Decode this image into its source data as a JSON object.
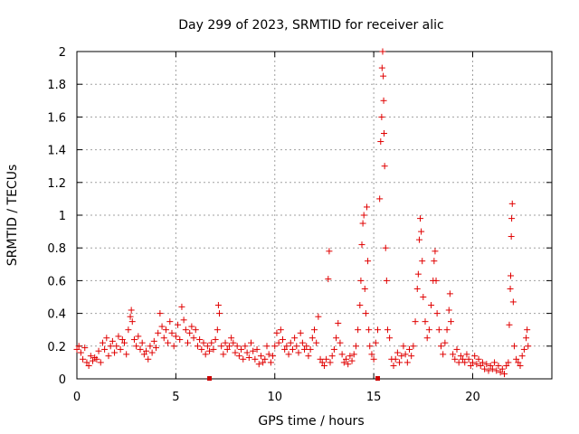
{
  "chart_data": {
    "type": "scatter",
    "title": "Day 299 of 2023, SRMTID for receiver alic",
    "xlabel": "GPS time / hours",
    "ylabel": "SRMTID / TECUs",
    "xlim": [
      0,
      24
    ],
    "ylim": [
      0,
      2
    ],
    "xticks": [
      0,
      5,
      10,
      15,
      20
    ],
    "xtick_labels": [
      "0",
      "5",
      "10",
      "15",
      "20"
    ],
    "yticks": [
      0,
      0.2,
      0.4,
      0.6,
      0.8,
      1,
      1.2,
      1.4,
      1.6,
      1.8,
      2
    ],
    "ytick_labels": [
      "0",
      "0.2",
      "0.4",
      "0.6",
      "0.8",
      "1",
      "1.2",
      "1.4",
      "1.6",
      "1.8",
      "2"
    ],
    "grid": true,
    "marker": "+",
    "color": "#e00000",
    "series": [
      {
        "name": "SRMTID",
        "points": [
          [
            0.0,
            0.18
          ],
          [
            0.1,
            0.2
          ],
          [
            0.2,
            0.16
          ],
          [
            0.3,
            0.12
          ],
          [
            0.4,
            0.19
          ],
          [
            0.5,
            0.1
          ],
          [
            0.6,
            0.08
          ],
          [
            0.7,
            0.14
          ],
          [
            0.8,
            0.11
          ],
          [
            0.9,
            0.13
          ],
          [
            1.0,
            0.12
          ],
          [
            1.1,
            0.17
          ],
          [
            1.2,
            0.1
          ],
          [
            1.3,
            0.22
          ],
          [
            1.4,
            0.18
          ],
          [
            1.5,
            0.25
          ],
          [
            1.6,
            0.14
          ],
          [
            1.7,
            0.2
          ],
          [
            1.8,
            0.23
          ],
          [
            1.9,
            0.16
          ],
          [
            2.0,
            0.2
          ],
          [
            2.1,
            0.26
          ],
          [
            2.2,
            0.18
          ],
          [
            2.3,
            0.24
          ],
          [
            2.4,
            0.22
          ],
          [
            2.5,
            0.15
          ],
          [
            2.6,
            0.3
          ],
          [
            2.7,
            0.38
          ],
          [
            2.75,
            0.42
          ],
          [
            2.8,
            0.35
          ],
          [
            2.9,
            0.24
          ],
          [
            3.0,
            0.2
          ],
          [
            3.1,
            0.26
          ],
          [
            3.2,
            0.18
          ],
          [
            3.3,
            0.22
          ],
          [
            3.4,
            0.15
          ],
          [
            3.5,
            0.17
          ],
          [
            3.6,
            0.12
          ],
          [
            3.7,
            0.2
          ],
          [
            3.8,
            0.16
          ],
          [
            3.9,
            0.23
          ],
          [
            4.0,
            0.19
          ],
          [
            4.1,
            0.28
          ],
          [
            4.2,
            0.4
          ],
          [
            4.3,
            0.32
          ],
          [
            4.4,
            0.25
          ],
          [
            4.5,
            0.3
          ],
          [
            4.6,
            0.22
          ],
          [
            4.7,
            0.35
          ],
          [
            4.8,
            0.28
          ],
          [
            4.9,
            0.2
          ],
          [
            5.0,
            0.26
          ],
          [
            5.1,
            0.33
          ],
          [
            5.2,
            0.24
          ],
          [
            5.3,
            0.44
          ],
          [
            5.4,
            0.36
          ],
          [
            5.5,
            0.3
          ],
          [
            5.6,
            0.22
          ],
          [
            5.7,
            0.28
          ],
          [
            5.8,
            0.32
          ],
          [
            5.9,
            0.25
          ],
          [
            6.0,
            0.3
          ],
          [
            6.1,
            0.2
          ],
          [
            6.2,
            0.24
          ],
          [
            6.3,
            0.18
          ],
          [
            6.4,
            0.22
          ],
          [
            6.5,
            0.15
          ],
          [
            6.6,
            0.2
          ],
          [
            6.7,
            0.17
          ],
          [
            6.8,
            0.22
          ],
          [
            6.9,
            0.18
          ],
          [
            7.0,
            0.24
          ],
          [
            7.1,
            0.3
          ],
          [
            7.15,
            0.45
          ],
          [
            7.2,
            0.4
          ],
          [
            7.3,
            0.2
          ],
          [
            7.4,
            0.15
          ],
          [
            7.5,
            0.22
          ],
          [
            7.6,
            0.18
          ],
          [
            7.7,
            0.2
          ],
          [
            7.8,
            0.25
          ],
          [
            7.9,
            0.22
          ],
          [
            8.0,
            0.16
          ],
          [
            8.1,
            0.2
          ],
          [
            8.2,
            0.14
          ],
          [
            8.3,
            0.18
          ],
          [
            8.4,
            0.12
          ],
          [
            8.5,
            0.2
          ],
          [
            8.6,
            0.16
          ],
          [
            8.7,
            0.13
          ],
          [
            8.8,
            0.22
          ],
          [
            8.9,
            0.17
          ],
          [
            9.0,
            0.12
          ],
          [
            9.1,
            0.18
          ],
          [
            9.2,
            0.09
          ],
          [
            9.3,
            0.14
          ],
          [
            9.4,
            0.1
          ],
          [
            9.5,
            0.12
          ],
          [
            9.6,
            0.2
          ],
          [
            9.7,
            0.15
          ],
          [
            9.8,
            0.1
          ],
          [
            9.9,
            0.14
          ],
          [
            10.0,
            0.2
          ],
          [
            10.1,
            0.28
          ],
          [
            10.2,
            0.22
          ],
          [
            10.3,
            0.3
          ],
          [
            10.4,
            0.24
          ],
          [
            10.5,
            0.18
          ],
          [
            10.6,
            0.2
          ],
          [
            10.7,
            0.15
          ],
          [
            10.8,
            0.22
          ],
          [
            10.9,
            0.18
          ],
          [
            11.0,
            0.25
          ],
          [
            11.1,
            0.2
          ],
          [
            11.2,
            0.16
          ],
          [
            11.3,
            0.28
          ],
          [
            11.4,
            0.22
          ],
          [
            11.5,
            0.18
          ],
          [
            11.6,
            0.2
          ],
          [
            11.7,
            0.14
          ],
          [
            11.8,
            0.18
          ],
          [
            11.9,
            0.25
          ],
          [
            12.0,
            0.3
          ],
          [
            12.1,
            0.22
          ],
          [
            12.2,
            0.38
          ],
          [
            12.3,
            0.12
          ],
          [
            12.4,
            0.1
          ],
          [
            12.5,
            0.08
          ],
          [
            12.6,
            0.12
          ],
          [
            12.7,
            0.61
          ],
          [
            12.75,
            0.78
          ],
          [
            12.8,
            0.1
          ],
          [
            12.9,
            0.14
          ],
          [
            13.0,
            0.18
          ],
          [
            13.1,
            0.25
          ],
          [
            13.2,
            0.34
          ],
          [
            13.3,
            0.22
          ],
          [
            13.4,
            0.15
          ],
          [
            13.5,
            0.1
          ],
          [
            13.6,
            0.12
          ],
          [
            13.7,
            0.09
          ],
          [
            13.8,
            0.14
          ],
          [
            13.9,
            0.11
          ],
          [
            14.0,
            0.15
          ],
          [
            14.1,
            0.2
          ],
          [
            14.2,
            0.3
          ],
          [
            14.3,
            0.45
          ],
          [
            14.35,
            0.6
          ],
          [
            14.4,
            0.82
          ],
          [
            14.45,
            0.95
          ],
          [
            14.5,
            1.0
          ],
          [
            14.55,
            0.55
          ],
          [
            14.6,
            0.4
          ],
          [
            14.65,
            1.05
          ],
          [
            14.7,
            0.72
          ],
          [
            14.75,
            0.3
          ],
          [
            14.8,
            0.2
          ],
          [
            14.9,
            0.15
          ],
          [
            15.0,
            0.12
          ],
          [
            15.1,
            0.22
          ],
          [
            15.2,
            0.3
          ],
          [
            15.3,
            1.1
          ],
          [
            15.35,
            1.45
          ],
          [
            15.4,
            1.6
          ],
          [
            15.42,
            1.9
          ],
          [
            15.45,
            2.0
          ],
          [
            15.48,
            1.85
          ],
          [
            15.5,
            1.7
          ],
          [
            15.52,
            1.5
          ],
          [
            15.55,
            1.3
          ],
          [
            15.6,
            0.8
          ],
          [
            15.65,
            0.6
          ],
          [
            15.7,
            0.3
          ],
          [
            15.8,
            0.25
          ],
          [
            15.9,
            0.12
          ],
          [
            16.0,
            0.08
          ],
          [
            16.1,
            0.12
          ],
          [
            16.2,
            0.16
          ],
          [
            16.3,
            0.1
          ],
          [
            16.4,
            0.14
          ],
          [
            16.5,
            0.2
          ],
          [
            16.6,
            0.15
          ],
          [
            16.7,
            0.1
          ],
          [
            16.8,
            0.18
          ],
          [
            16.9,
            0.14
          ],
          [
            17.0,
            0.2
          ],
          [
            17.1,
            0.35
          ],
          [
            17.2,
            0.55
          ],
          [
            17.25,
            0.64
          ],
          [
            17.3,
            0.85
          ],
          [
            17.35,
            0.98
          ],
          [
            17.4,
            0.9
          ],
          [
            17.45,
            0.72
          ],
          [
            17.5,
            0.5
          ],
          [
            17.6,
            0.35
          ],
          [
            17.7,
            0.25
          ],
          [
            17.8,
            0.3
          ],
          [
            17.9,
            0.45
          ],
          [
            18.0,
            0.6
          ],
          [
            18.05,
            0.72
          ],
          [
            18.1,
            0.78
          ],
          [
            18.15,
            0.6
          ],
          [
            18.2,
            0.4
          ],
          [
            18.3,
            0.3
          ],
          [
            18.4,
            0.2
          ],
          [
            18.5,
            0.15
          ],
          [
            18.6,
            0.22
          ],
          [
            18.7,
            0.3
          ],
          [
            18.8,
            0.42
          ],
          [
            18.85,
            0.52
          ],
          [
            18.9,
            0.35
          ],
          [
            19.0,
            0.15
          ],
          [
            19.1,
            0.12
          ],
          [
            19.2,
            0.18
          ],
          [
            19.3,
            0.1
          ],
          [
            19.4,
            0.14
          ],
          [
            19.5,
            0.12
          ],
          [
            19.6,
            0.1
          ],
          [
            19.7,
            0.15
          ],
          [
            19.8,
            0.12
          ],
          [
            19.9,
            0.08
          ],
          [
            20.0,
            0.1
          ],
          [
            20.1,
            0.14
          ],
          [
            20.2,
            0.09
          ],
          [
            20.3,
            0.12
          ],
          [
            20.4,
            0.08
          ],
          [
            20.5,
            0.1
          ],
          [
            20.6,
            0.06
          ],
          [
            20.7,
            0.09
          ],
          [
            20.8,
            0.05
          ],
          [
            20.9,
            0.08
          ],
          [
            21.0,
            0.06
          ],
          [
            21.1,
            0.1
          ],
          [
            21.2,
            0.05
          ],
          [
            21.3,
            0.08
          ],
          [
            21.4,
            0.04
          ],
          [
            21.5,
            0.06
          ],
          [
            21.6,
            0.03
          ],
          [
            21.7,
            0.08
          ],
          [
            21.8,
            0.1
          ],
          [
            21.85,
            0.33
          ],
          [
            21.9,
            0.55
          ],
          [
            21.92,
            0.63
          ],
          [
            21.95,
            0.87
          ],
          [
            21.97,
            0.98
          ],
          [
            22.0,
            1.07
          ],
          [
            22.05,
            0.47
          ],
          [
            22.1,
            0.2
          ],
          [
            22.2,
            0.12
          ],
          [
            22.3,
            0.1
          ],
          [
            22.4,
            0.08
          ],
          [
            22.5,
            0.14
          ],
          [
            22.6,
            0.18
          ],
          [
            22.7,
            0.25
          ],
          [
            22.75,
            0.3
          ],
          [
            22.8,
            0.2
          ]
        ]
      }
    ],
    "missing_marker_color": "#cc0000",
    "missing_marks_x": [
      6.7,
      15.2
    ]
  }
}
